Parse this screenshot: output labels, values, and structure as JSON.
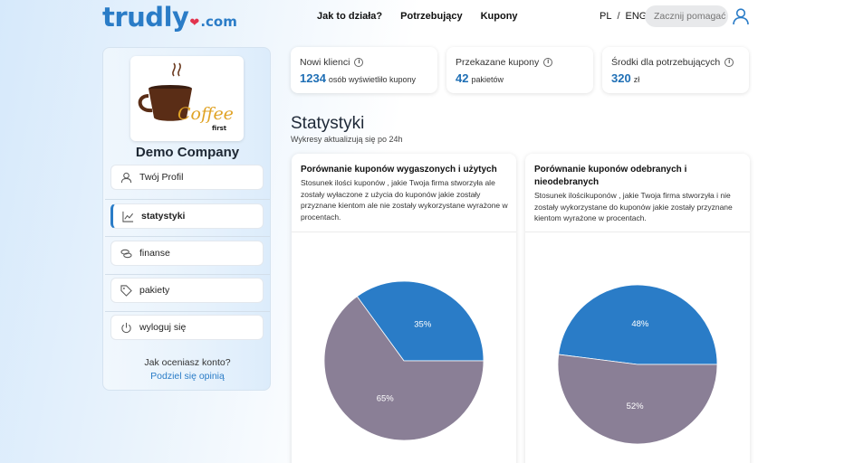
{
  "header": {
    "logo_main": "trudly",
    "logo_suffix": ".com",
    "nav": [
      "Jak to działa?",
      "Potrzebujący",
      "Kupony"
    ],
    "lang": {
      "pl": "PL",
      "separator": "/",
      "eng": "ENG"
    },
    "search_placeholder": "Zacznij pomagać"
  },
  "sidebar": {
    "company_name": "Demo Company",
    "logo_text": {
      "main": "Coffee",
      "sub": "first"
    },
    "items": [
      {
        "label": "Twój Profil",
        "icon": "user-icon"
      },
      {
        "label": "statystyki",
        "icon": "chart-line-icon",
        "active": true
      },
      {
        "label": "finanse",
        "icon": "coins-icon"
      },
      {
        "label": "pakiety",
        "icon": "tag-icon"
      },
      {
        "label": "wyloguj się",
        "icon": "power-icon"
      }
    ],
    "rate_prompt": "Jak oceniasz konto?",
    "rate_link": "Podziel się opinią"
  },
  "stats": [
    {
      "title": "Nowi klienci",
      "value": "1234",
      "unit": "osób wyświetliło kupony"
    },
    {
      "title": "Przekazane kupony",
      "value": "42",
      "unit": "pakietów"
    },
    {
      "title": "Środki dla potrzebujących",
      "value": "320",
      "unit": "zł"
    }
  ],
  "section": {
    "title": "Statystyki",
    "subtitle": "Wykresy aktualizują się po 24h"
  },
  "colors": {
    "blue": "#2a7cc7",
    "grey": "#8a7f96"
  },
  "chart_data": [
    {
      "type": "pie",
      "title": "Porównanie kuponów wygaszonych i użytych",
      "description": "Stosunek ilości kuponów , jakie Twoja firma stworzyła ale zostały wyłaczone z użycia do kuponów  jakie zostały przyznane kientom ale nie zostały wykorzystane wyrażone w procentach.",
      "slices": [
        {
          "value": 35,
          "label": "35%",
          "color": "#2a7cc7"
        },
        {
          "value": 65,
          "label": "65%",
          "color": "#8a7f96"
        }
      ]
    },
    {
      "type": "pie",
      "title": "Porównanie kuponów odebranych i nieodebranych",
      "description": "Stosunek ilościkuponów , jakie Twoja firma stworzyła i nie zostały wykorzystane do kuponów  jakie zostały przyznane kientom wyrażone w procentach.",
      "slices": [
        {
          "value": 48,
          "label": "48%",
          "color": "#2a7cc7"
        },
        {
          "value": 52,
          "label": "52%",
          "color": "#8a7f96"
        }
      ]
    }
  ]
}
